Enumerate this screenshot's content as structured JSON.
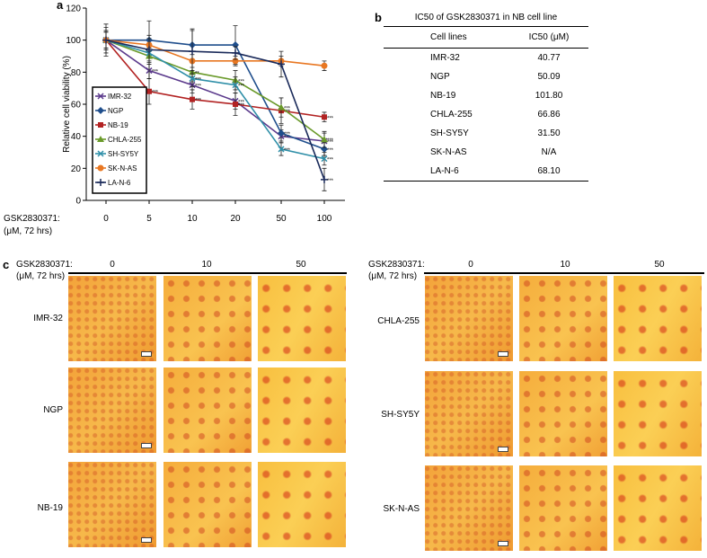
{
  "chart_data": {
    "type": "line",
    "panel_letter": "a",
    "ylabel": "Relative cell viability (%)",
    "xlabel": "GSK2830371:",
    "xlabel_units": "(μM, 72 hrs)",
    "x": [
      "0",
      "5",
      "10",
      "20",
      "50",
      "100"
    ],
    "ylim": [
      0,
      120
    ],
    "yticks": [
      "0",
      "20",
      "40",
      "60",
      "80",
      "100",
      "120"
    ],
    "legend_position": "left-middle",
    "series": [
      {
        "name": "IMR-32",
        "color": "#5b3a8c",
        "marker": "x",
        "values": [
          100,
          81,
          72,
          62,
          40,
          37
        ],
        "err": [
          10,
          5,
          5,
          5,
          4,
          5
        ],
        "sig": [
          "",
          "***",
          "***",
          "***",
          "***",
          "***"
        ]
      },
      {
        "name": "NGP",
        "color": "#1f4e8c",
        "marker": "diamond",
        "values": [
          100,
          100,
          97,
          97,
          42,
          32
        ],
        "err": [
          5,
          3,
          9,
          12,
          5,
          4
        ],
        "sig": [
          "",
          "",
          "",
          "",
          "***",
          "***"
        ]
      },
      {
        "name": "NB-19",
        "color": "#b22222",
        "marker": "square",
        "values": [
          100,
          68,
          63,
          60,
          56,
          52
        ],
        "err": [
          8,
          8,
          6,
          7,
          8,
          3
        ],
        "sig": [
          "",
          "***",
          "***",
          "***",
          "***",
          "***"
        ]
      },
      {
        "name": "CHLA-255",
        "color": "#6a9a2a",
        "marker": "triangle",
        "values": [
          100,
          90,
          80,
          75,
          58,
          38
        ],
        "err": [
          6,
          5,
          6,
          6,
          6,
          5
        ],
        "sig": [
          "",
          "",
          "**",
          "***",
          "***",
          "***"
        ]
      },
      {
        "name": "SH-SY5Y",
        "color": "#2f8fa8",
        "marker": "x",
        "values": [
          100,
          92,
          76,
          72,
          32,
          26
        ],
        "err": [
          6,
          5,
          5,
          5,
          4,
          4
        ],
        "sig": [
          "",
          "",
          "***",
          "***",
          "***",
          "***"
        ]
      },
      {
        "name": "SK-N-AS",
        "color": "#e87722",
        "marker": "circle",
        "values": [
          100,
          97,
          87,
          87,
          87,
          84
        ],
        "err": [
          5,
          4,
          4,
          3,
          3,
          3
        ],
        "sig": [
          "",
          "",
          "",
          "",
          "",
          ""
        ]
      },
      {
        "name": "LA-N-6",
        "color": "#1a2a5a",
        "marker": "plus",
        "values": [
          100,
          94,
          93,
          92,
          85,
          13
        ],
        "err": [
          5,
          18,
          14,
          4,
          8,
          7
        ],
        "sig": [
          "",
          "",
          "",
          "",
          "",
          "***"
        ]
      }
    ]
  },
  "table_b": {
    "panel_letter": "b",
    "caption": "IC50 of GSK2830371 in NB cell line",
    "col1": "Cell lines",
    "col2": "IC50 (μM)",
    "rows": [
      {
        "cell": "IMR-32",
        "ic50": "40.77"
      },
      {
        "cell": "NGP",
        "ic50": "50.09"
      },
      {
        "cell": "NB-19",
        "ic50": "101.80"
      },
      {
        "cell": "CHLA-255",
        "ic50": "66.86"
      },
      {
        "cell": "SH-SY5Y",
        "ic50": "31.50"
      },
      {
        "cell": "SK-N-AS",
        "ic50": "N/A"
      },
      {
        "cell": "LA-N-6",
        "ic50": "68.10"
      }
    ]
  },
  "panel_c": {
    "panel_letter": "c",
    "dose_header": "GSK2830371:",
    "dose_units": "(μM, 72 hrs)",
    "doses": [
      "0",
      "10",
      "50"
    ],
    "left_cells": [
      "IMR-32",
      "NGP",
      "NB-19"
    ],
    "right_cells": [
      "CHLA-255",
      "SH-SY5Y",
      "SK-N-AS"
    ]
  }
}
